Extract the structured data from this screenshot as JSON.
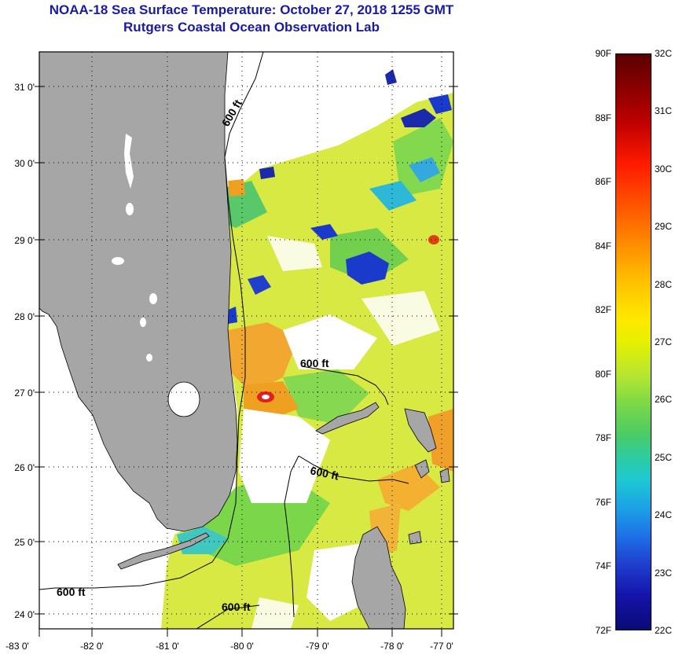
{
  "header": {
    "title": "NOAA-18 Sea Surface Temperature:  October 27, 2018 1255 GMT",
    "subtitle": "Rutgers Coastal Ocean Observation Lab"
  },
  "map": {
    "lat_labels": [
      "31 0'",
      "30 0'",
      "29 0'",
      "28 0'",
      "27 0'",
      "26 0'",
      "25 0'",
      "24 0'"
    ],
    "lon_labels": [
      "-83 0'",
      "-82 0'",
      "-81 0'",
      "-80 0'",
      "-79 0'",
      "-78 0'",
      "-77 0'"
    ],
    "contour_label": "600 ft",
    "colors": {
      "land": "#a6a6a6",
      "ocean_no_data": "#ffffff",
      "grid": "#000000"
    }
  },
  "colorbar": {
    "fahrenheit": [
      "90F",
      "88F",
      "86F",
      "84F",
      "82F",
      "80F",
      "78F",
      "76F",
      "74F",
      "72F"
    ],
    "celsius": [
      "32C",
      "31C",
      "30C",
      "29C",
      "28C",
      "27C",
      "26C",
      "25C",
      "24C",
      "23C",
      "22C"
    ]
  }
}
